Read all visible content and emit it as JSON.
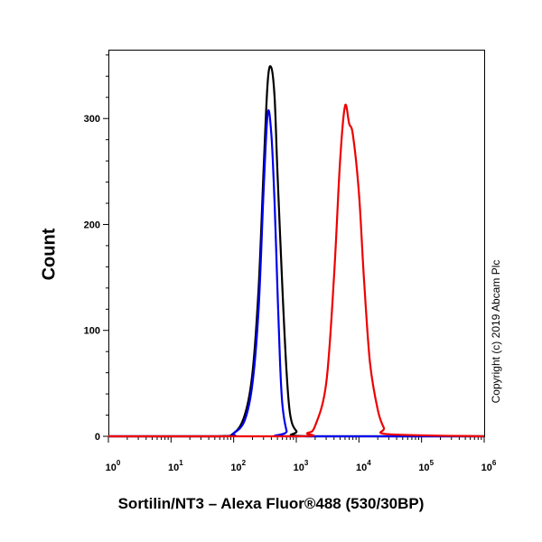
{
  "chart_data": {
    "type": "line",
    "xlabel": "Sortilin/NT3 – Alexa Fluor®488 (530/30BP)",
    "ylabel": "Count",
    "x_scale": "log",
    "xlim": [
      1,
      1000000
    ],
    "ylim": [
      0,
      365
    ],
    "y_ticks": [
      "0",
      "100",
      "200",
      "300"
    ],
    "x_ticks": [
      {
        "base": "10",
        "exp": "0"
      },
      {
        "base": "10",
        "exp": "1"
      },
      {
        "base": "10",
        "exp": "2"
      },
      {
        "base": "10",
        "exp": "3"
      },
      {
        "base": "10",
        "exp": "4"
      },
      {
        "base": "10",
        "exp": "5"
      },
      {
        "base": "10",
        "exp": "6"
      }
    ],
    "series": [
      {
        "color": "#000000",
        "x": [
          1,
          50,
          100,
          150,
          200,
          250,
          300,
          350,
          400,
          450,
          500,
          600,
          700,
          800,
          1000,
          1500,
          1000000
        ],
        "y": [
          0,
          0,
          3,
          20,
          60,
          140,
          250,
          335,
          348,
          320,
          250,
          140,
          60,
          20,
          5,
          0,
          0
        ]
      },
      {
        "color": "#0000ee",
        "x": [
          1,
          70,
          100,
          150,
          200,
          250,
          300,
          350,
          400,
          450,
          500,
          550,
          600,
          700,
          800,
          1000000
        ],
        "y": [
          0,
          0,
          3,
          15,
          50,
          120,
          230,
          305,
          285,
          220,
          140,
          70,
          30,
          5,
          0,
          0
        ]
      },
      {
        "color": "#ee0000",
        "x": [
          1,
          1000,
          1500,
          2000,
          3000,
          4000,
          5000,
          6000,
          7000,
          8000,
          10000,
          12000,
          15000,
          20000,
          25000,
          30000,
          1000000
        ],
        "y": [
          0,
          0,
          3,
          10,
          50,
          150,
          260,
          312,
          295,
          285,
          230,
          150,
          70,
          25,
          8,
          2,
          0
        ]
      }
    ]
  },
  "watermark": "Copyright (c) 2019 Abcam Plc"
}
